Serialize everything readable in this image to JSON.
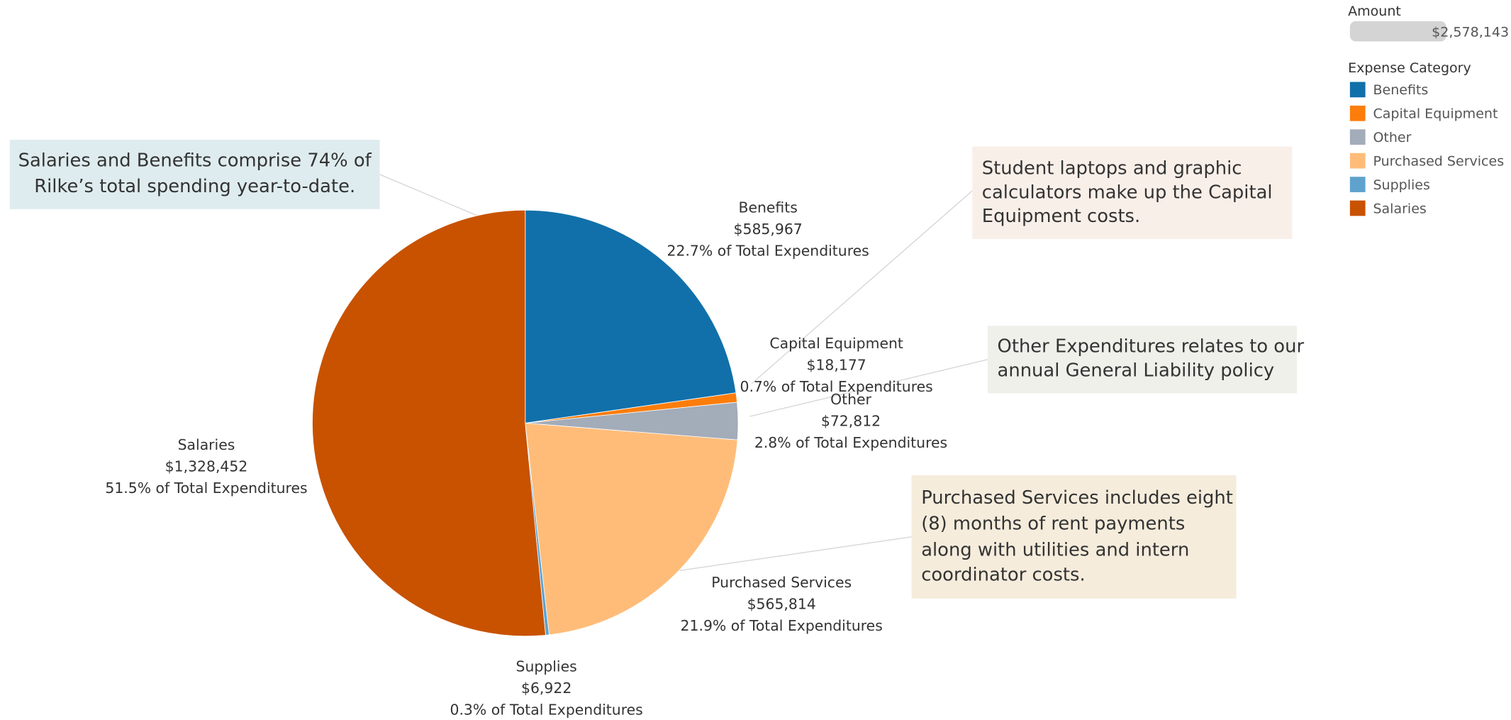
{
  "chart_data": {
    "type": "pie",
    "categories": [
      "Benefits",
      "Capital Equipment",
      "Other",
      "Purchased Services",
      "Supplies",
      "Salaries"
    ],
    "values": [
      585967,
      18177,
      72812,
      565814,
      6922,
      1328452
    ],
    "value_labels": [
      "$585,967",
      "$18,177",
      "$72,812",
      "$565,814",
      "$6,922",
      "$1,328,452"
    ],
    "percent_labels": [
      "22.7% of Total Expenditures",
      "0.7% of Total Expenditures",
      "2.8% of Total Expenditures",
      "21.9% of Total Expenditures",
      "0.3% of Total Expenditures",
      "51.5% of Total Expenditures"
    ],
    "colors": [
      "#1170aa",
      "#fc7d0b",
      "#a3acb9",
      "#ffbc79",
      "#5fa2ce",
      "#c85200"
    ],
    "size_legend": {
      "title": "Amount",
      "label": "$2,578,143"
    },
    "legend": {
      "title": "Expense Category"
    },
    "annotations": [
      {
        "lines": [
          "Salaries and Benefits comprise 74% of",
          "Rilke’s total spending year-to-date."
        ]
      },
      {
        "lines": [
          "Student laptops and graphic",
          "calculators make up the Capital",
          "Equipment costs."
        ]
      },
      {
        "lines": [
          "Other Expenditures relates to our",
          "annual General Liability policy"
        ]
      },
      {
        "lines": [
          "Purchased Services includes eight",
          "(8) months of rent payments",
          "along with utilities and intern",
          "coordinator costs."
        ]
      }
    ]
  }
}
